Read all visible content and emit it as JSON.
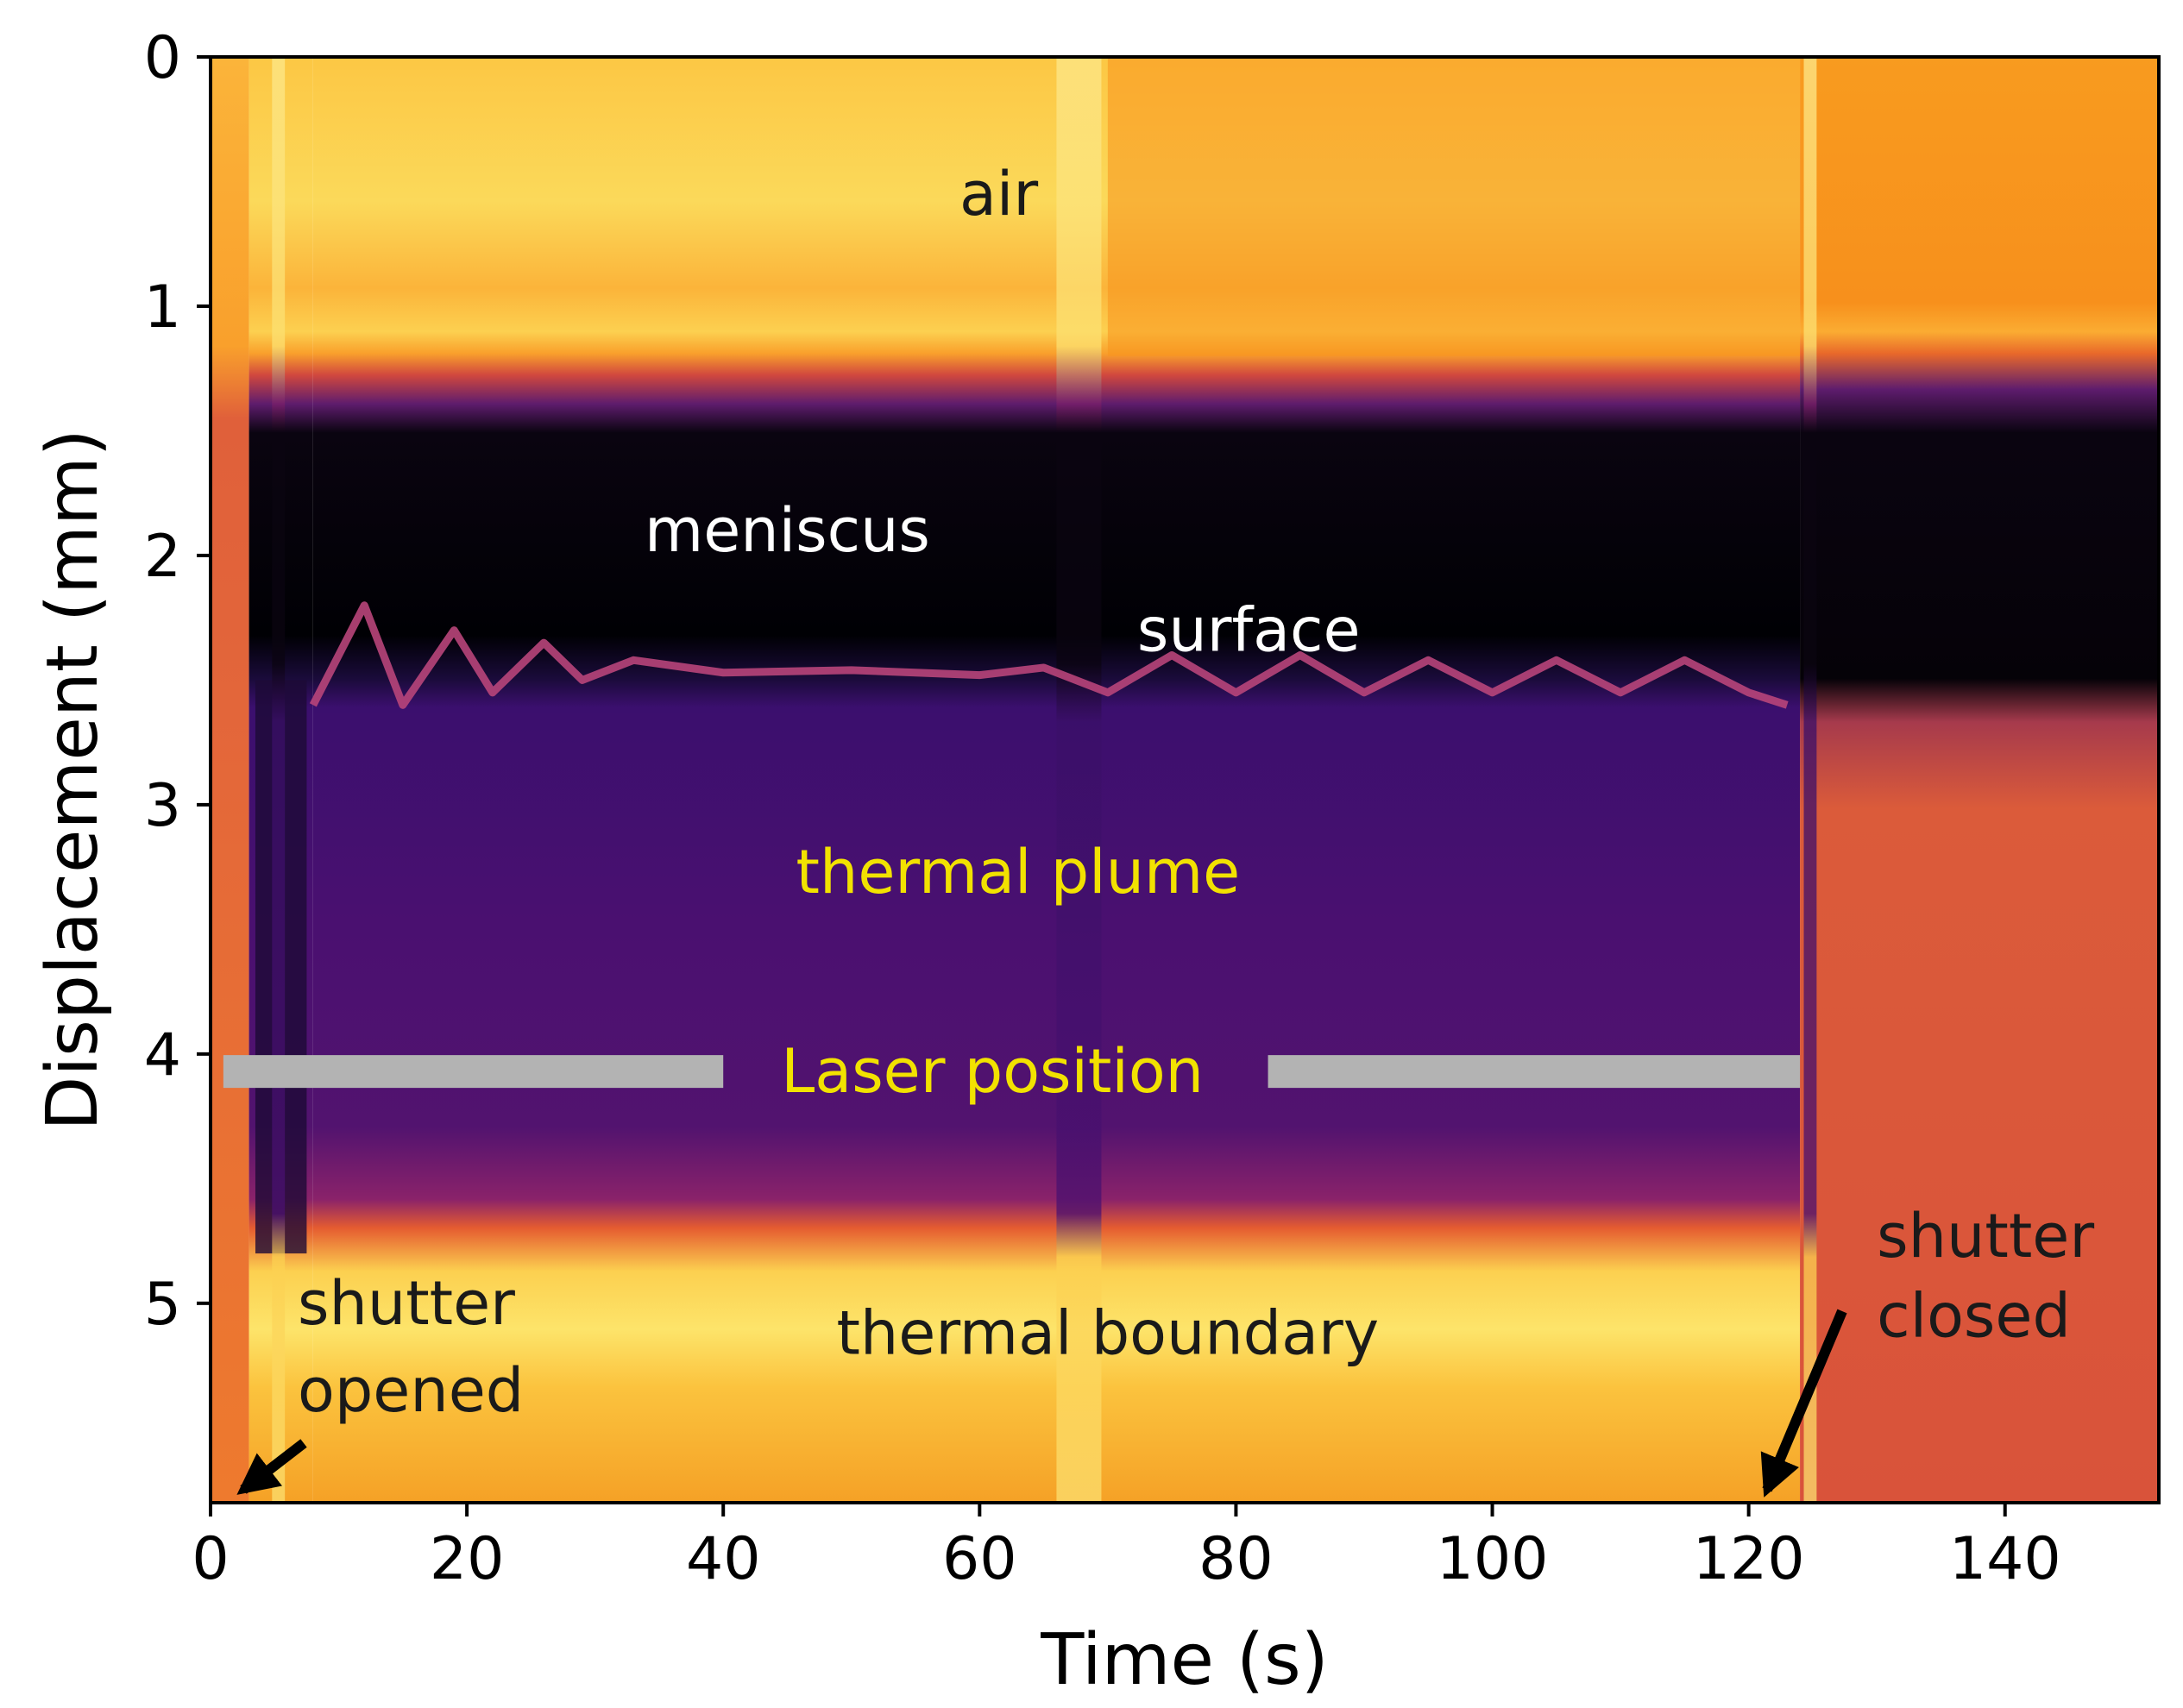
{
  "chart_data": {
    "type": "heatmap",
    "title": "",
    "xlabel": "Time (s)",
    "ylabel": "Displacement (mm)",
    "xlim": [
      0,
      152
    ],
    "ylim": [
      5.8,
      0
    ],
    "xticks": [
      0,
      20,
      40,
      60,
      80,
      100,
      120,
      140
    ],
    "yticks": [
      0,
      1,
      2,
      3,
      4,
      5
    ],
    "colormap": "inferno",
    "grid": false,
    "legend": "none",
    "regions": [
      {
        "name": "air",
        "y_range": [
          0,
          1.2
        ],
        "intensity": "high"
      },
      {
        "name": "meniscus",
        "y_range": [
          1.4,
          2.4
        ],
        "intensity": "low"
      },
      {
        "name": "thermal plume",
        "y_range": [
          2.5,
          4.7
        ],
        "intensity": "medium-low"
      },
      {
        "name": "thermal boundary",
        "y_range": [
          4.7,
          5.3
        ],
        "intensity": "high"
      }
    ],
    "surface_oscillation": {
      "x": [
        8,
        12,
        15,
        19,
        22,
        26,
        29,
        33,
        40,
        50,
        60,
        65,
        70,
        75,
        80,
        85,
        90,
        95,
        100,
        105,
        110,
        115,
        120,
        123
      ],
      "y": [
        2.6,
        2.2,
        2.6,
        2.3,
        2.55,
        2.35,
        2.5,
        2.42,
        2.47,
        2.46,
        2.48,
        2.45,
        2.55,
        2.4,
        2.55,
        2.4,
        2.55,
        2.42,
        2.55,
        2.42,
        2.55,
        2.42,
        2.55,
        2.6
      ]
    },
    "laser_position": {
      "y": 4.07,
      "x_start": 1,
      "x_end": 124
    },
    "shutter_opened_time": 1,
    "shutter_closed_time": 121,
    "annotations": [
      {
        "text": "air",
        "x": 61.5,
        "y": 0.55,
        "color": "#1a1a1a"
      },
      {
        "text": "meniscus",
        "x": 45,
        "y": 1.9,
        "color": "#ffffff"
      },
      {
        "text": "surface",
        "x": 81,
        "y": 2.3,
        "color": "#ffffff"
      },
      {
        "text": "thermal plume",
        "x": 63,
        "y": 3.27,
        "color": "#f2e200"
      },
      {
        "text": "Laser position",
        "x": 61,
        "y": 4.07,
        "color": "#f2e200"
      },
      {
        "text": "thermal boundary",
        "x": 70,
        "y": 5.12,
        "color": "#1a1a1a"
      },
      {
        "text": "shutter",
        "x": 6.8,
        "y": 5.0,
        "color": "#1a1a1a"
      },
      {
        "text": "opened",
        "x": 6.8,
        "y": 5.35,
        "color": "#1a1a1a"
      },
      {
        "text": "shutter",
        "x": 130,
        "y": 4.73,
        "color": "#1a1a1a"
      },
      {
        "text": "closed",
        "x": 130,
        "y": 5.05,
        "color": "#1a1a1a"
      }
    ]
  }
}
